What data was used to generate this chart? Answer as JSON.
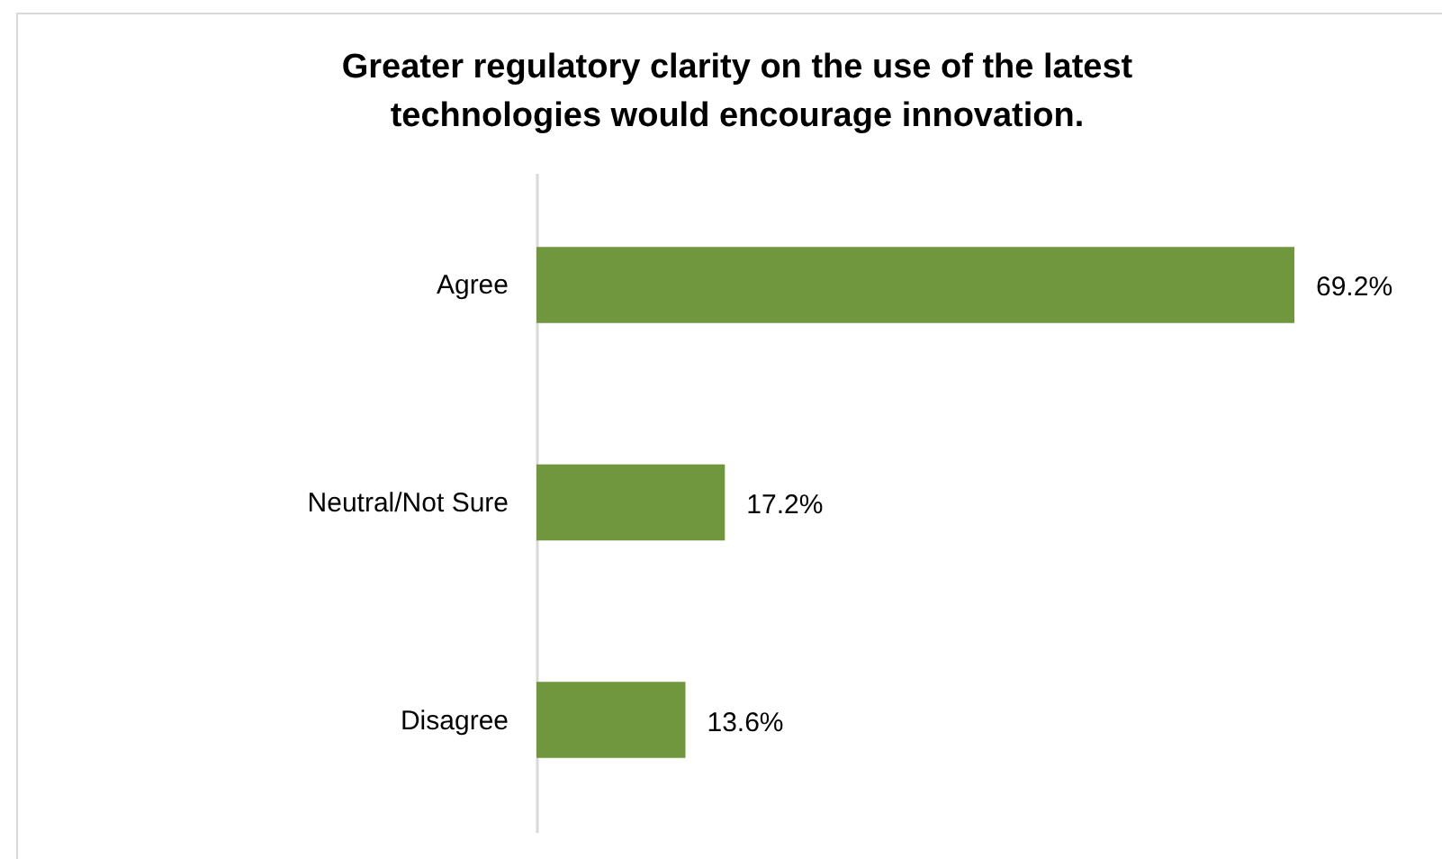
{
  "chart_data": {
    "type": "bar",
    "orientation": "horizontal",
    "title": [
      "Greater regulatory clarity on the use of the latest",
      "technologies would encourage innovation."
    ],
    "categories": [
      "Agree",
      "Neutral/Not Sure",
      "Disagree"
    ],
    "values": [
      69.2,
      17.2,
      13.6
    ],
    "value_labels": [
      "69.2%",
      "17.2%",
      "13.6%"
    ],
    "color": "#70963e",
    "grid": false
  }
}
